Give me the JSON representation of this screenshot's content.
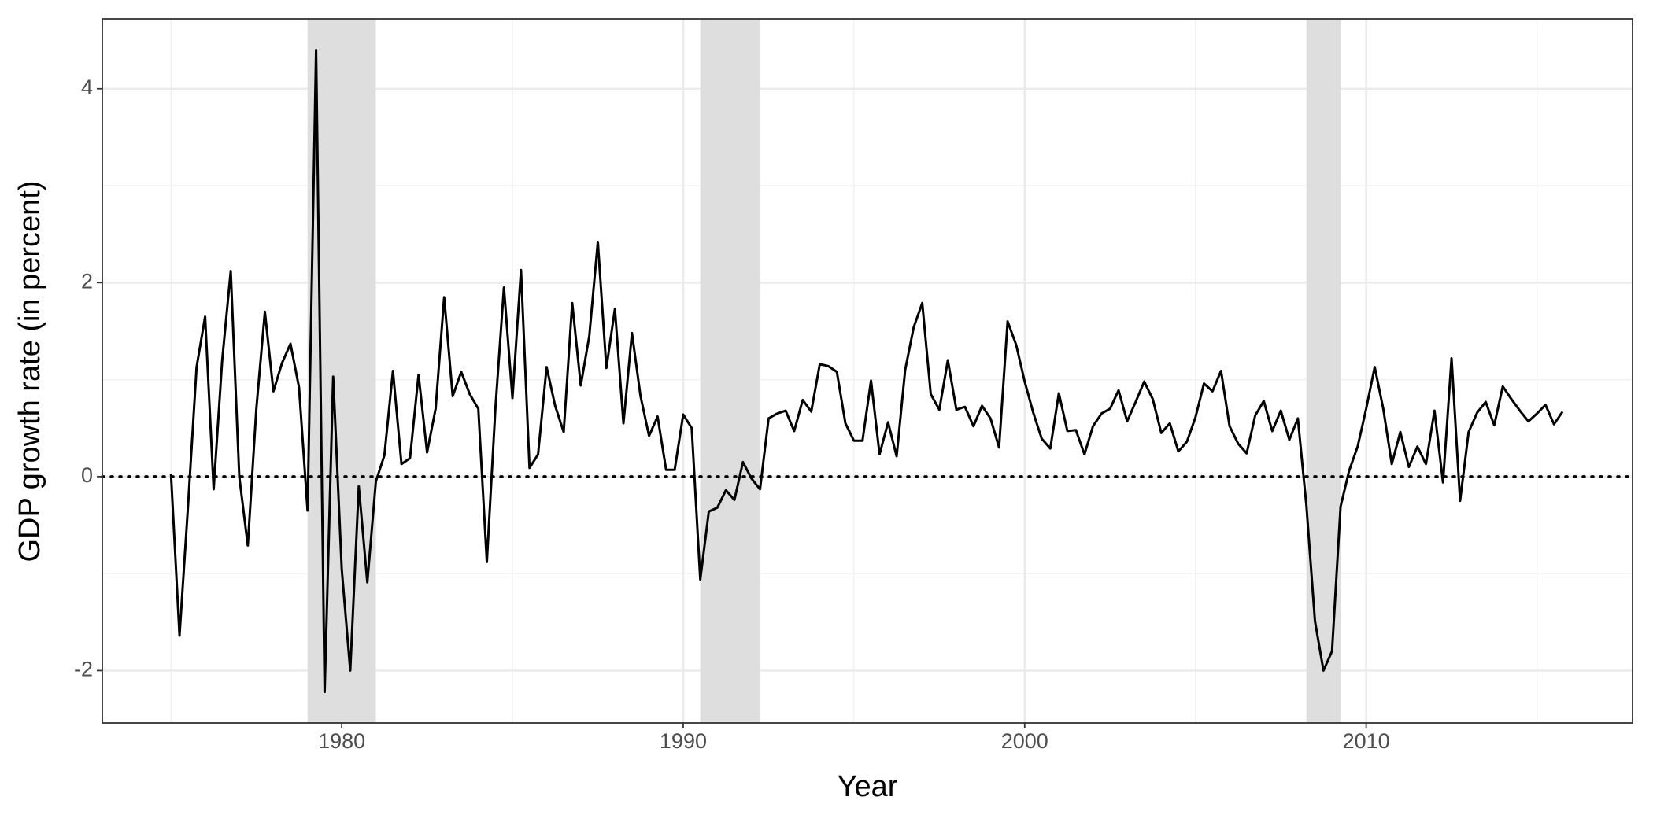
{
  "chart_data": {
    "type": "line",
    "x_label": "Year",
    "y_label": "GDP growth rate (in percent)",
    "color": "#000000",
    "x": [
      1975,
      1975.25,
      1975.5,
      1975.75,
      1976,
      1976.25,
      1976.5,
      1976.75,
      1977,
      1977.25,
      1977.5,
      1977.75,
      1978,
      1978.25,
      1978.5,
      1978.75,
      1979,
      1979.25,
      1979.5,
      1979.75,
      1980,
      1980.25,
      1980.5,
      1980.75,
      1981,
      1981.25,
      1981.5,
      1981.75,
      1982,
      1982.25,
      1982.5,
      1982.75,
      1983,
      1983.25,
      1983.5,
      1983.75,
      1984,
      1984.25,
      1984.5,
      1984.75,
      1985,
      1985.25,
      1985.5,
      1985.75,
      1986,
      1986.25,
      1986.5,
      1986.75,
      1987,
      1987.25,
      1987.5,
      1987.75,
      1988,
      1988.25,
      1988.5,
      1988.75,
      1989,
      1989.25,
      1989.5,
      1989.75,
      1990,
      1990.25,
      1990.5,
      1990.75,
      1991,
      1991.25,
      1991.5,
      1991.75,
      1992,
      1992.25,
      1992.5,
      1992.75,
      1993,
      1993.25,
      1993.5,
      1993.75,
      1994,
      1994.25,
      1994.5,
      1994.75,
      1995,
      1995.25,
      1995.5,
      1995.75,
      1996,
      1996.25,
      1996.5,
      1996.75,
      1997,
      1997.25,
      1997.5,
      1997.75,
      1998,
      1998.25,
      1998.5,
      1998.75,
      1999,
      1999.25,
      1999.5,
      1999.75,
      2000,
      2000.25,
      2000.5,
      2000.75,
      2001,
      2001.25,
      2001.5,
      2001.75,
      2002,
      2002.25,
      2002.5,
      2002.75,
      2003,
      2003.25,
      2003.5,
      2003.75,
      2004,
      2004.25,
      2004.5,
      2004.75,
      2005,
      2005.25,
      2005.5,
      2005.75,
      2006,
      2006.25,
      2006.5,
      2006.75,
      2007,
      2007.25,
      2007.5,
      2007.75,
      2008,
      2008.25,
      2008.5,
      2008.75,
      2009,
      2009.25,
      2009.5,
      2009.75,
      2010,
      2010.25,
      2010.5,
      2010.75,
      2011,
      2011.25,
      2011.5,
      2011.75,
      2012,
      2012.25,
      2012.5,
      2012.75,
      2013,
      2013.25,
      2013.5,
      2013.75,
      2014,
      2014.25,
      2014.5,
      2014.75,
      2015,
      2015.25,
      2015.5,
      2015.75
    ],
    "values": [
      0.03,
      -1.64,
      -0.3,
      1.13,
      1.65,
      -0.13,
      1.2,
      2.12,
      0.0,
      -0.71,
      0.7,
      1.7,
      0.88,
      1.17,
      1.37,
      0.92,
      -0.35,
      4.4,
      -2.22,
      1.03,
      -0.95,
      -2.0,
      -0.1,
      -1.09,
      -0.05,
      0.22,
      1.09,
      0.13,
      0.19,
      1.05,
      0.25,
      0.7,
      1.85,
      0.83,
      1.08,
      0.85,
      0.7,
      -0.88,
      0.7,
      1.95,
      0.81,
      2.13,
      0.09,
      0.23,
      1.13,
      0.73,
      0.46,
      1.79,
      0.94,
      1.45,
      2.42,
      1.12,
      1.73,
      0.55,
      1.48,
      0.83,
      0.42,
      0.62,
      0.07,
      0.07,
      0.64,
      0.5,
      -1.06,
      -0.36,
      -0.32,
      -0.14,
      -0.24,
      0.15,
      -0.02,
      -0.13,
      0.6,
      0.65,
      0.68,
      0.47,
      0.79,
      0.67,
      1.16,
      1.14,
      1.08,
      0.55,
      0.37,
      0.37,
      0.99,
      0.23,
      0.56,
      0.21,
      1.1,
      1.54,
      1.79,
      0.85,
      0.69,
      1.2,
      0.69,
      0.72,
      0.52,
      0.73,
      0.6,
      0.3,
      1.6,
      1.36,
      0.98,
      0.66,
      0.39,
      0.29,
      0.86,
      0.47,
      0.48,
      0.23,
      0.52,
      0.65,
      0.7,
      0.89,
      0.57,
      0.77,
      0.98,
      0.8,
      0.45,
      0.55,
      0.26,
      0.36,
      0.61,
      0.96,
      0.88,
      1.09,
      0.52,
      0.34,
      0.24,
      0.63,
      0.78,
      0.47,
      0.68,
      0.38,
      0.6,
      -0.3,
      -1.49,
      -2.0,
      -1.8,
      -0.31,
      0.06,
      0.31,
      0.7,
      1.13,
      0.7,
      0.13,
      0.46,
      0.1,
      0.31,
      0.13,
      0.68,
      -0.06,
      1.22,
      -0.25,
      0.46,
      0.66,
      0.77,
      0.53,
      0.93,
      0.8,
      0.68,
      0.57,
      0.65,
      0.74,
      0.54,
      0.67
    ],
    "shaded_regions": [
      [
        1979,
        1981
      ],
      [
        1990.5,
        1992.25
      ],
      [
        2008.25,
        2009.25
      ]
    ],
    "shade_color": "#dedede",
    "reference_line": 0,
    "xlim": [
      1972.99,
      2017.8
    ],
    "ylim": [
      -2.54,
      4.72
    ],
    "xticks": [
      1980,
      1990,
      2000,
      2010
    ],
    "yticks": [
      -2,
      0,
      2,
      4
    ],
    "x_minor_gridlines": [
      1975,
      1985,
      1995,
      2005,
      2015
    ],
    "y_minor_gridlines": [
      -1,
      1,
      3
    ],
    "grid": true
  }
}
